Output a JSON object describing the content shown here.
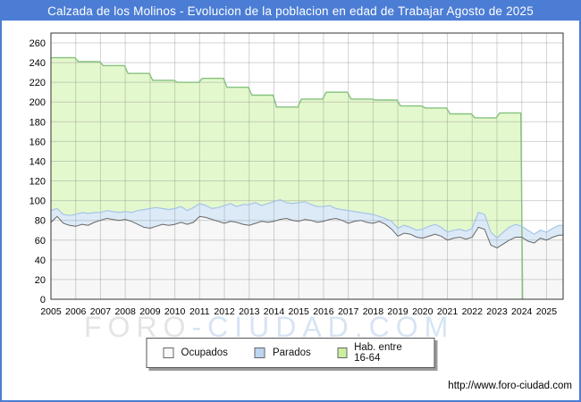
{
  "window": {
    "title": "Calzada de los Molinos - Evolucion de la poblacion en edad de Trabajar Agosto de 2025",
    "accent_color": "#4b7dd4",
    "footer_url": "http://www.foro-ciudad.com",
    "watermark_part1": "FORO",
    "watermark_part2": "-CIUDAD.COM"
  },
  "chart_data": {
    "type": "area",
    "title": "Calzada de los Molinos - Evolucion de la poblacion en edad de Trabajar Agosto de 2025",
    "grid": true,
    "x_axis": {
      "tick_labels": [
        "2005",
        "2006",
        "2007",
        "2008",
        "2009",
        "2010",
        "2011",
        "2012",
        "2013",
        "2014",
        "2015",
        "2016",
        "2017",
        "2018",
        "2019",
        "2020",
        "2021",
        "2022",
        "2023",
        "2024",
        "2025"
      ],
      "domain_start": 2005,
      "domain_end": 2025.67
    },
    "y_axis": {
      "ticks": [
        0,
        20,
        40,
        60,
        80,
        100,
        120,
        140,
        160,
        180,
        200,
        220,
        240,
        260
      ],
      "range": [
        0,
        260
      ]
    },
    "legend": {
      "position": "bottom-center",
      "items": [
        {
          "label": "Ocupados",
          "swatch_color": "#fbfbfb"
        },
        {
          "label": "Parados",
          "swatch_color": "#bcd5f1"
        },
        {
          "label": "Hab. entre 16-64",
          "swatch_color": "#c9ef9f"
        }
      ]
    },
    "series": [
      {
        "name": "Hab. entre 16-64",
        "style": "step-area-yearly",
        "fill": "#e4f8cd",
        "line": "#86c27e",
        "x_start": 2005,
        "x_step": 1,
        "ends_at": 2024,
        "values": [
          245,
          241,
          237,
          229,
          222,
          220,
          224,
          215,
          207,
          195,
          203,
          210,
          203,
          202,
          196,
          194,
          188,
          184,
          189
        ]
      },
      {
        "name": "Parados",
        "style": "area-stacked-on-ocupados",
        "fill": "#dceaf8",
        "line": "#a6c4e6",
        "x_start": 2005,
        "x_step": 0.25,
        "values": [
          12,
          8,
          9,
          10,
          12,
          12,
          12,
          10,
          8,
          8,
          8,
          8,
          8,
          9,
          14,
          18,
          20,
          19,
          16,
          16,
          16,
          16,
          14,
          15,
          13,
          12,
          11,
          14,
          18,
          18,
          16,
          20,
          21,
          21,
          16,
          19,
          20,
          20,
          16,
          17,
          19,
          18,
          16,
          16,
          15,
          14,
          10,
          11,
          13,
          10,
          8,
          9,
          9,
          5,
          6,
          8,
          8,
          8,
          7,
          7,
          9,
          10,
          10,
          9,
          8,
          8,
          8,
          8,
          9,
          15,
          15,
          13,
          10,
          12,
          13,
          13,
          11,
          11,
          9,
          8,
          8,
          9,
          10
        ]
      },
      {
        "name": "Ocupados",
        "style": "area-base",
        "fill": "#f7f7f7",
        "line": "#666666",
        "x_start": 2005,
        "x_step": 0.25,
        "values": [
          78,
          84,
          77,
          75,
          74,
          76,
          75,
          78,
          80,
          82,
          81,
          80,
          81,
          79,
          76,
          73,
          72,
          74,
          76,
          75,
          76,
          78,
          76,
          78,
          84,
          83,
          81,
          79,
          77,
          79,
          78,
          76,
          75,
          77,
          79,
          78,
          79,
          81,
          82,
          80,
          79,
          81,
          80,
          78,
          79,
          81,
          82,
          80,
          77,
          79,
          80,
          78,
          77,
          79,
          76,
          71,
          64,
          67,
          66,
          63,
          62,
          64,
          66,
          64,
          60,
          62,
          63,
          61,
          63,
          73,
          71,
          55,
          52,
          56,
          60,
          63,
          63,
          59,
          57,
          62,
          60,
          63,
          65
        ]
      }
    ]
  }
}
